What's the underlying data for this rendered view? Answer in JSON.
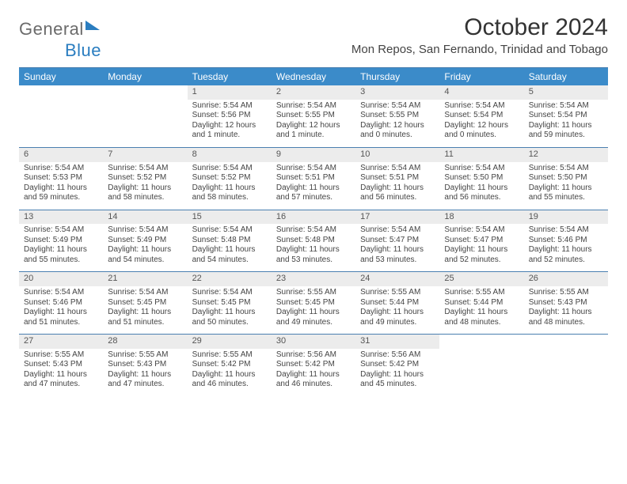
{
  "logo": {
    "part1": "General",
    "part2": "Blue"
  },
  "title": "October 2024",
  "location": "Mon Repos, San Fernando, Trinidad and Tobago",
  "colors": {
    "header_bg": "#3b8bc9",
    "header_text": "#ffffff",
    "daynum_bg": "#ececec",
    "rule": "#4a7fb0",
    "logo_gray": "#6b6b6b",
    "logo_blue": "#2a7dc0"
  },
  "weekdays": [
    "Sunday",
    "Monday",
    "Tuesday",
    "Wednesday",
    "Thursday",
    "Friday",
    "Saturday"
  ],
  "weeks": [
    [
      null,
      null,
      {
        "n": "1",
        "sr": "Sunrise: 5:54 AM",
        "ss": "Sunset: 5:56 PM",
        "dl": "Daylight: 12 hours and 1 minute."
      },
      {
        "n": "2",
        "sr": "Sunrise: 5:54 AM",
        "ss": "Sunset: 5:55 PM",
        "dl": "Daylight: 12 hours and 1 minute."
      },
      {
        "n": "3",
        "sr": "Sunrise: 5:54 AM",
        "ss": "Sunset: 5:55 PM",
        "dl": "Daylight: 12 hours and 0 minutes."
      },
      {
        "n": "4",
        "sr": "Sunrise: 5:54 AM",
        "ss": "Sunset: 5:54 PM",
        "dl": "Daylight: 12 hours and 0 minutes."
      },
      {
        "n": "5",
        "sr": "Sunrise: 5:54 AM",
        "ss": "Sunset: 5:54 PM",
        "dl": "Daylight: 11 hours and 59 minutes."
      }
    ],
    [
      {
        "n": "6",
        "sr": "Sunrise: 5:54 AM",
        "ss": "Sunset: 5:53 PM",
        "dl": "Daylight: 11 hours and 59 minutes."
      },
      {
        "n": "7",
        "sr": "Sunrise: 5:54 AM",
        "ss": "Sunset: 5:52 PM",
        "dl": "Daylight: 11 hours and 58 minutes."
      },
      {
        "n": "8",
        "sr": "Sunrise: 5:54 AM",
        "ss": "Sunset: 5:52 PM",
        "dl": "Daylight: 11 hours and 58 minutes."
      },
      {
        "n": "9",
        "sr": "Sunrise: 5:54 AM",
        "ss": "Sunset: 5:51 PM",
        "dl": "Daylight: 11 hours and 57 minutes."
      },
      {
        "n": "10",
        "sr": "Sunrise: 5:54 AM",
        "ss": "Sunset: 5:51 PM",
        "dl": "Daylight: 11 hours and 56 minutes."
      },
      {
        "n": "11",
        "sr": "Sunrise: 5:54 AM",
        "ss": "Sunset: 5:50 PM",
        "dl": "Daylight: 11 hours and 56 minutes."
      },
      {
        "n": "12",
        "sr": "Sunrise: 5:54 AM",
        "ss": "Sunset: 5:50 PM",
        "dl": "Daylight: 11 hours and 55 minutes."
      }
    ],
    [
      {
        "n": "13",
        "sr": "Sunrise: 5:54 AM",
        "ss": "Sunset: 5:49 PM",
        "dl": "Daylight: 11 hours and 55 minutes."
      },
      {
        "n": "14",
        "sr": "Sunrise: 5:54 AM",
        "ss": "Sunset: 5:49 PM",
        "dl": "Daylight: 11 hours and 54 minutes."
      },
      {
        "n": "15",
        "sr": "Sunrise: 5:54 AM",
        "ss": "Sunset: 5:48 PM",
        "dl": "Daylight: 11 hours and 54 minutes."
      },
      {
        "n": "16",
        "sr": "Sunrise: 5:54 AM",
        "ss": "Sunset: 5:48 PM",
        "dl": "Daylight: 11 hours and 53 minutes."
      },
      {
        "n": "17",
        "sr": "Sunrise: 5:54 AM",
        "ss": "Sunset: 5:47 PM",
        "dl": "Daylight: 11 hours and 53 minutes."
      },
      {
        "n": "18",
        "sr": "Sunrise: 5:54 AM",
        "ss": "Sunset: 5:47 PM",
        "dl": "Daylight: 11 hours and 52 minutes."
      },
      {
        "n": "19",
        "sr": "Sunrise: 5:54 AM",
        "ss": "Sunset: 5:46 PM",
        "dl": "Daylight: 11 hours and 52 minutes."
      }
    ],
    [
      {
        "n": "20",
        "sr": "Sunrise: 5:54 AM",
        "ss": "Sunset: 5:46 PM",
        "dl": "Daylight: 11 hours and 51 minutes."
      },
      {
        "n": "21",
        "sr": "Sunrise: 5:54 AM",
        "ss": "Sunset: 5:45 PM",
        "dl": "Daylight: 11 hours and 51 minutes."
      },
      {
        "n": "22",
        "sr": "Sunrise: 5:54 AM",
        "ss": "Sunset: 5:45 PM",
        "dl": "Daylight: 11 hours and 50 minutes."
      },
      {
        "n": "23",
        "sr": "Sunrise: 5:55 AM",
        "ss": "Sunset: 5:45 PM",
        "dl": "Daylight: 11 hours and 49 minutes."
      },
      {
        "n": "24",
        "sr": "Sunrise: 5:55 AM",
        "ss": "Sunset: 5:44 PM",
        "dl": "Daylight: 11 hours and 49 minutes."
      },
      {
        "n": "25",
        "sr": "Sunrise: 5:55 AM",
        "ss": "Sunset: 5:44 PM",
        "dl": "Daylight: 11 hours and 48 minutes."
      },
      {
        "n": "26",
        "sr": "Sunrise: 5:55 AM",
        "ss": "Sunset: 5:43 PM",
        "dl": "Daylight: 11 hours and 48 minutes."
      }
    ],
    [
      {
        "n": "27",
        "sr": "Sunrise: 5:55 AM",
        "ss": "Sunset: 5:43 PM",
        "dl": "Daylight: 11 hours and 47 minutes."
      },
      {
        "n": "28",
        "sr": "Sunrise: 5:55 AM",
        "ss": "Sunset: 5:43 PM",
        "dl": "Daylight: 11 hours and 47 minutes."
      },
      {
        "n": "29",
        "sr": "Sunrise: 5:55 AM",
        "ss": "Sunset: 5:42 PM",
        "dl": "Daylight: 11 hours and 46 minutes."
      },
      {
        "n": "30",
        "sr": "Sunrise: 5:56 AM",
        "ss": "Sunset: 5:42 PM",
        "dl": "Daylight: 11 hours and 46 minutes."
      },
      {
        "n": "31",
        "sr": "Sunrise: 5:56 AM",
        "ss": "Sunset: 5:42 PM",
        "dl": "Daylight: 11 hours and 45 minutes."
      },
      null,
      null
    ]
  ]
}
